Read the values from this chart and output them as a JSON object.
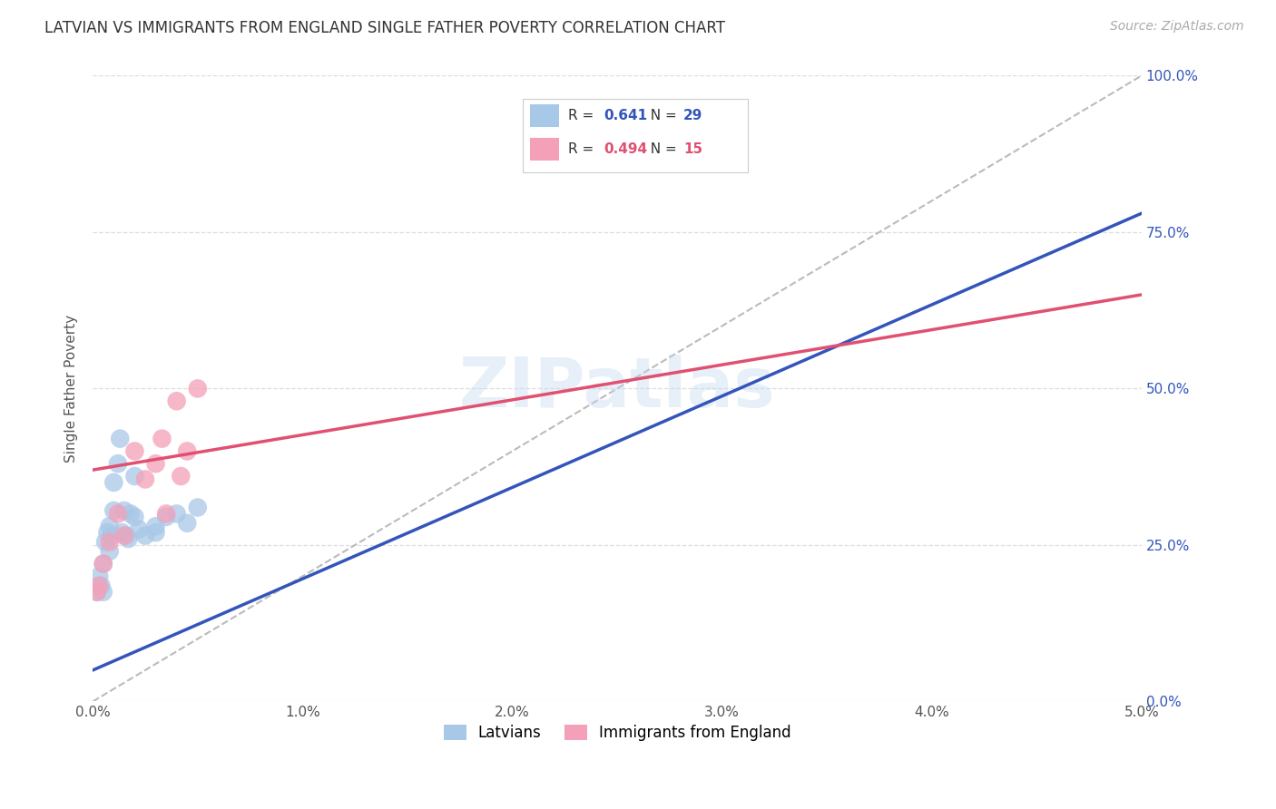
{
  "title": "LATVIAN VS IMMIGRANTS FROM ENGLAND SINGLE FATHER POVERTY CORRELATION CHART",
  "source": "Source: ZipAtlas.com",
  "ylabel_label": "Single Father Poverty",
  "xlim": [
    0.0,
    0.05
  ],
  "ylim": [
    0.0,
    1.0
  ],
  "xtick_vals": [
    0.0,
    0.01,
    0.02,
    0.03,
    0.04,
    0.05
  ],
  "ytick_vals": [
    0.0,
    0.25,
    0.5,
    0.75,
    1.0
  ],
  "xtick_labels": [
    "0.0%",
    "1.0%",
    "2.0%",
    "3.0%",
    "4.0%",
    "5.0%"
  ],
  "right_ytick_labels": [
    "0.0%",
    "25.0%",
    "50.0%",
    "75.0%",
    "100.0%"
  ],
  "latvian_color": "#A8C8E8",
  "england_color": "#F4A0B8",
  "line_latvian_color": "#3355BB",
  "line_england_color": "#E05070",
  "diagonal_color": "#BBBBBB",
  "R_latvian": 0.641,
  "N_latvian": 29,
  "R_england": 0.494,
  "N_england": 15,
  "latvian_x": [
    0.0002,
    0.0003,
    0.0004,
    0.0005,
    0.0005,
    0.0006,
    0.0007,
    0.0008,
    0.0008,
    0.0009,
    0.001,
    0.001,
    0.0012,
    0.0013,
    0.0014,
    0.0015,
    0.0016,
    0.0017,
    0.0018,
    0.002,
    0.002,
    0.0022,
    0.0025,
    0.003,
    0.003,
    0.0035,
    0.004,
    0.0045,
    0.005
  ],
  "latvian_y": [
    0.175,
    0.2,
    0.185,
    0.22,
    0.175,
    0.255,
    0.27,
    0.28,
    0.24,
    0.265,
    0.305,
    0.35,
    0.38,
    0.42,
    0.27,
    0.305,
    0.265,
    0.26,
    0.3,
    0.36,
    0.295,
    0.275,
    0.265,
    0.27,
    0.28,
    0.295,
    0.3,
    0.285,
    0.31
  ],
  "england_x": [
    0.0002,
    0.0003,
    0.0005,
    0.0008,
    0.0012,
    0.0015,
    0.002,
    0.0025,
    0.003,
    0.0033,
    0.0035,
    0.004,
    0.0042,
    0.0045,
    0.005
  ],
  "england_y": [
    0.175,
    0.185,
    0.22,
    0.255,
    0.3,
    0.265,
    0.4,
    0.355,
    0.38,
    0.42,
    0.3,
    0.48,
    0.36,
    0.4,
    0.5
  ],
  "watermark_text": "ZIPatlas",
  "background_color": "#FFFFFF",
  "grid_color": "#DDDDDD",
  "title_color": "#333333",
  "source_color": "#AAAAAA",
  "tick_color": "#555555",
  "right_tick_color": "#3355BB"
}
